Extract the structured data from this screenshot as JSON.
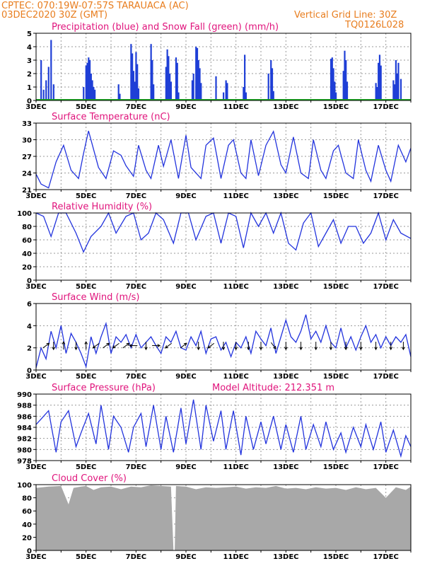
{
  "header": {
    "line1": "CPTEC:    070:19W-07:57S   TARAUACA (AC)",
    "line2": "03DEC2020 30Z (GMT)",
    "grid_note": "Vertical Grid Line: 30Z",
    "code": "TQ0126L028",
    "altitude_label": "Model Altitude: 212.351 m"
  },
  "colors": {
    "header": "#e87d1e",
    "title": "#e0147c",
    "rain": "#1f3fd6",
    "snow": "#19a81f",
    "line": "#2233dd",
    "cloud": "#a8a8a8",
    "arrow": "#000000"
  },
  "x_ticks": [
    "3DEC",
    "5DEC",
    "7DEC",
    "9DEC",
    "11DEC",
    "13DEC",
    "15DEC",
    "17DEC"
  ],
  "chart_data": [
    {
      "id": "precip",
      "type": "bar",
      "title": "Precipitation (blue) and Snow Fall (green) (mm/h)",
      "ylim": [
        0,
        5
      ],
      "yticks": [
        0,
        1,
        2,
        3,
        4,
        5
      ],
      "x_days": [
        3,
        18
      ],
      "series": [
        {
          "name": "Precipitation",
          "color": "#1f3fd6",
          "x": [
            3.2,
            3.3,
            3.4,
            3.5,
            3.6,
            3.7,
            4.9,
            5.0,
            5.05,
            5.1,
            5.15,
            5.2,
            5.25,
            5.3,
            5.35,
            6.3,
            6.35,
            6.8,
            6.85,
            6.9,
            6.95,
            7.0,
            7.05,
            7.1,
            7.6,
            7.65,
            7.7,
            8.2,
            8.25,
            8.3,
            8.35,
            8.4,
            8.6,
            8.65,
            8.7,
            9.25,
            9.3,
            9.4,
            9.45,
            9.5,
            9.55,
            9.6,
            10.2,
            10.5,
            10.6,
            10.65,
            11.3,
            11.35,
            11.4,
            12.3,
            12.4,
            12.45,
            12.5,
            14.8,
            14.85,
            14.9,
            14.95,
            15.0,
            15.3,
            15.35,
            15.4,
            15.45,
            16.6,
            16.65,
            16.7,
            16.75,
            16.8,
            17.3,
            17.35,
            17.4,
            17.45,
            17.5,
            17.6
          ],
          "values": [
            3.0,
            0.8,
            1.5,
            2.5,
            4.5,
            1.2,
            1.0,
            2.6,
            2.8,
            3.2,
            3.0,
            2.0,
            1.5,
            1.0,
            0.8,
            1.2,
            0.5,
            4.2,
            3.5,
            2.2,
            1.4,
            3.6,
            2.7,
            0.9,
            4.2,
            3.0,
            1.2,
            2.5,
            3.8,
            3.3,
            2.0,
            1.4,
            3.2,
            2.8,
            0.6,
            1.5,
            2.0,
            4.0,
            3.9,
            3.0,
            2.4,
            1.3,
            1.8,
            0.6,
            1.5,
            1.3,
            1.0,
            3.4,
            0.6,
            2.0,
            3.0,
            2.4,
            0.7,
            3.1,
            3.2,
            2.4,
            1.4,
            0.6,
            2.2,
            3.7,
            3.0,
            1.4,
            1.3,
            1.0,
            2.8,
            3.4,
            2.6,
            1.5,
            1.2,
            3.0,
            2.0,
            2.8,
            1.6
          ]
        },
        {
          "name": "Snow Fall",
          "color": "#19a81f",
          "x": [
            3,
            18
          ],
          "values": [
            0,
            0
          ]
        }
      ]
    },
    {
      "id": "temp",
      "type": "line",
      "title": "Surface Temperature (nC)",
      "ylim": [
        21,
        33
      ],
      "yticks": [
        21,
        24,
        27,
        30,
        33
      ],
      "x_days": [
        3,
        18
      ],
      "series": [
        {
          "name": "Temperature",
          "color": "#2233dd",
          "x": [
            3.0,
            3.2,
            3.5,
            3.8,
            4.1,
            4.4,
            4.7,
            4.9,
            5.1,
            5.5,
            5.8,
            6.1,
            6.4,
            6.6,
            6.9,
            7.1,
            7.4,
            7.6,
            7.9,
            8.1,
            8.4,
            8.7,
            9.0,
            9.2,
            9.6,
            9.8,
            10.1,
            10.4,
            10.7,
            10.9,
            11.2,
            11.4,
            11.6,
            11.9,
            12.2,
            12.5,
            12.8,
            13.0,
            13.3,
            13.6,
            13.9,
            14.1,
            14.4,
            14.6,
            14.9,
            15.1,
            15.4,
            15.7,
            15.9,
            16.2,
            16.4,
            16.7,
            17.0,
            17.2,
            17.5,
            17.8,
            18.0
          ],
          "values": [
            23.8,
            22.0,
            21.3,
            26.0,
            29.0,
            24.5,
            23.0,
            27.5,
            31.6,
            25.0,
            23.0,
            28.0,
            27.2,
            25.3,
            23.4,
            29.0,
            24.5,
            23.0,
            29.0,
            25.2,
            30.0,
            23.0,
            30.8,
            25.0,
            23.0,
            29.0,
            30.3,
            23.0,
            29.0,
            30.0,
            24.0,
            23.0,
            30.0,
            23.5,
            29.0,
            31.5,
            25.5,
            24.0,
            30.5,
            24.0,
            23.0,
            30.0,
            24.5,
            23.0,
            28.0,
            29.0,
            24.0,
            23.0,
            30.0,
            24.5,
            22.5,
            29.0,
            24.5,
            22.5,
            29.0,
            26.0,
            28.5
          ]
        }
      ]
    },
    {
      "id": "rh",
      "type": "line",
      "title": "Relative Humidity (%)",
      "ylim": [
        0,
        100
      ],
      "yticks": [
        0,
        20,
        40,
        60,
        80,
        100
      ],
      "x_days": [
        3,
        18
      ],
      "series": [
        {
          "name": "Relative Humidity",
          "color": "#2233dd",
          "x": [
            3.0,
            3.3,
            3.6,
            3.9,
            4.2,
            4.6,
            4.9,
            5.2,
            5.6,
            5.9,
            6.2,
            6.6,
            6.9,
            7.2,
            7.5,
            7.8,
            8.1,
            8.5,
            8.8,
            9.1,
            9.4,
            9.8,
            10.1,
            10.4,
            10.7,
            11.0,
            11.3,
            11.6,
            11.9,
            12.2,
            12.5,
            12.8,
            13.1,
            13.4,
            13.7,
            14.0,
            14.3,
            14.6,
            14.9,
            15.2,
            15.5,
            15.8,
            16.1,
            16.4,
            16.7,
            17.0,
            17.3,
            17.6,
            18.0
          ],
          "values": [
            100,
            95,
            65,
            100,
            100,
            70,
            42,
            65,
            80,
            100,
            70,
            95,
            100,
            60,
            70,
            100,
            90,
            55,
            100,
            100,
            60,
            95,
            100,
            55,
            100,
            95,
            48,
            100,
            80,
            100,
            70,
            100,
            55,
            45,
            85,
            100,
            50,
            70,
            90,
            55,
            80,
            80,
            55,
            70,
            100,
            60,
            90,
            70,
            62
          ]
        }
      ]
    },
    {
      "id": "wind",
      "type": "line",
      "title": "Surface Wind (m/s)",
      "ylim": [
        0,
        6
      ],
      "yticks": [
        0,
        2,
        4,
        6
      ],
      "x_days": [
        3,
        18
      ],
      "series": [
        {
          "name": "Wind speed",
          "color": "#2233dd",
          "x": [
            3.0,
            3.2,
            3.4,
            3.6,
            3.8,
            4.0,
            4.2,
            4.4,
            4.6,
            4.8,
            5.0,
            5.2,
            5.4,
            5.6,
            5.8,
            6.0,
            6.2,
            6.4,
            6.6,
            6.8,
            7.0,
            7.2,
            7.4,
            7.6,
            7.8,
            8.0,
            8.2,
            8.4,
            8.6,
            8.8,
            9.0,
            9.2,
            9.4,
            9.6,
            9.8,
            10.0,
            10.2,
            10.4,
            10.6,
            10.8,
            11.0,
            11.2,
            11.4,
            11.6,
            11.8,
            12.0,
            12.2,
            12.4,
            12.6,
            12.8,
            13.0,
            13.2,
            13.4,
            13.6,
            13.8,
            14.0,
            14.2,
            14.4,
            14.6,
            14.8,
            15.0,
            15.2,
            15.4,
            15.6,
            15.8,
            16.0,
            16.2,
            16.4,
            16.6,
            16.8,
            17.0,
            17.2,
            17.4,
            17.6,
            17.8,
            18.0
          ],
          "values": [
            0.2,
            2.0,
            1.0,
            3.5,
            2.0,
            4.0,
            1.5,
            3.3,
            2.5,
            1.5,
            0.3,
            3.0,
            1.5,
            3.0,
            4.2,
            1.5,
            3.0,
            2.5,
            3.2,
            2.0,
            3.2,
            2.0,
            2.5,
            3.0,
            2.2,
            1.5,
            3.0,
            2.5,
            3.5,
            2.0,
            1.8,
            3.0,
            2.2,
            3.5,
            1.5,
            2.8,
            3.0,
            1.8,
            2.5,
            1.2,
            2.5,
            2.0,
            3.0,
            1.5,
            3.5,
            2.8,
            2.2,
            3.8,
            1.5,
            3.0,
            4.5,
            3.0,
            2.5,
            3.5,
            5.0,
            2.8,
            3.5,
            2.5,
            4.0,
            2.5,
            2.0,
            3.8,
            2.0,
            3.0,
            1.8,
            3.0,
            4.0,
            2.5,
            3.2,
            2.0,
            3.0,
            2.2,
            3.0,
            2.5,
            3.2,
            1.2
          ]
        }
      ],
      "arrows": [
        {
          "x": 3.4,
          "dir": "ne"
        },
        {
          "x": 3.7,
          "dir": "s"
        },
        {
          "x": 4.1,
          "dir": "n"
        },
        {
          "x": 4.6,
          "dir": "s"
        },
        {
          "x": 5.0,
          "dir": "n"
        },
        {
          "x": 5.4,
          "dir": "sw"
        },
        {
          "x": 5.8,
          "dir": "ne"
        },
        {
          "x": 6.2,
          "dir": "sw"
        },
        {
          "x": 6.6,
          "dir": "ne"
        },
        {
          "x": 6.9,
          "dir": "w"
        },
        {
          "x": 7.4,
          "dir": "s"
        },
        {
          "x": 7.8,
          "dir": "e"
        },
        {
          "x": 8.3,
          "dir": "sw"
        },
        {
          "x": 8.9,
          "dir": "ne"
        },
        {
          "x": 9.5,
          "dir": "s"
        },
        {
          "x": 10.0,
          "dir": "sw"
        },
        {
          "x": 10.5,
          "dir": "s"
        },
        {
          "x": 11.0,
          "dir": "s"
        },
        {
          "x": 11.5,
          "dir": "s"
        },
        {
          "x": 12.0,
          "dir": "s"
        },
        {
          "x": 12.5,
          "dir": "se"
        },
        {
          "x": 13.0,
          "dir": "s"
        },
        {
          "x": 13.6,
          "dir": "s"
        },
        {
          "x": 14.2,
          "dir": "s"
        },
        {
          "x": 14.8,
          "dir": "s"
        },
        {
          "x": 15.4,
          "dir": "s"
        },
        {
          "x": 16.0,
          "dir": "s"
        },
        {
          "x": 16.6,
          "dir": "s"
        },
        {
          "x": 17.2,
          "dir": "s"
        },
        {
          "x": 17.7,
          "dir": "s"
        }
      ]
    },
    {
      "id": "pressure",
      "type": "line",
      "title": "Surface Pressure (hPa)",
      "ylim": [
        978,
        990
      ],
      "yticks": [
        978,
        980,
        982,
        984,
        986,
        988,
        990
      ],
      "x_days": [
        3,
        18
      ],
      "series": [
        {
          "name": "Pressure",
          "color": "#2233dd",
          "x": [
            3.0,
            3.2,
            3.5,
            3.8,
            4.0,
            4.3,
            4.6,
            4.8,
            5.1,
            5.4,
            5.6,
            5.9,
            6.1,
            6.4,
            6.7,
            6.9,
            7.2,
            7.4,
            7.7,
            8.0,
            8.2,
            8.5,
            8.8,
            9.0,
            9.3,
            9.6,
            9.8,
            10.1,
            10.4,
            10.6,
            10.9,
            11.2,
            11.4,
            11.7,
            12.0,
            12.2,
            12.5,
            12.8,
            13.0,
            13.3,
            13.6,
            13.8,
            14.1,
            14.4,
            14.6,
            14.9,
            15.2,
            15.4,
            15.7,
            16.0,
            16.2,
            16.5,
            16.8,
            17.0,
            17.3,
            17.6,
            17.8,
            18.0
          ],
          "values": [
            984.5,
            985.5,
            987.0,
            979.5,
            985.0,
            987.0,
            980.5,
            983.0,
            986.5,
            981.0,
            988.0,
            980.0,
            986.0,
            984.0,
            979.5,
            984.0,
            986.5,
            980.5,
            988.0,
            980.0,
            986.0,
            979.5,
            987.5,
            981.0,
            989.0,
            980.0,
            988.0,
            981.5,
            987.0,
            980.0,
            987.0,
            979.0,
            986.0,
            980.0,
            985.0,
            981.0,
            986.0,
            980.0,
            984.5,
            979.5,
            986.0,
            980.0,
            984.5,
            980.5,
            985.0,
            980.0,
            983.0,
            979.5,
            984.0,
            980.5,
            984.5,
            980.0,
            985.0,
            979.5,
            983.5,
            978.8,
            982.5,
            980.5
          ]
        }
      ]
    },
    {
      "id": "cloud",
      "type": "area",
      "title": "Cloud Cover (%)",
      "ylim": [
        0,
        100
      ],
      "yticks": [
        0,
        20,
        40,
        60,
        80,
        100
      ],
      "x_days": [
        3,
        18
      ],
      "series": [
        {
          "name": "Cloud Cover",
          "color": "#a8a8a8",
          "x": [
            3.0,
            3.5,
            4.0,
            4.3,
            4.5,
            4.8,
            5.0,
            5.3,
            5.6,
            6.0,
            6.4,
            6.8,
            7.2,
            7.6,
            8.0,
            8.4,
            8.5,
            8.55,
            8.6,
            9.0,
            9.4,
            9.8,
            10.2,
            10.6,
            11.0,
            11.4,
            11.8,
            12.2,
            12.6,
            13.0,
            13.4,
            13.8,
            14.2,
            14.6,
            15.0,
            15.4,
            15.8,
            16.2,
            16.6,
            17.0,
            17.4,
            17.8,
            18.0
          ],
          "values": [
            95,
            97,
            98,
            70,
            95,
            97,
            98,
            92,
            96,
            97,
            93,
            97,
            96,
            99,
            98,
            97,
            0,
            0,
            98,
            97,
            93,
            96,
            95,
            96,
            97,
            94,
            96,
            95,
            98,
            94,
            95,
            93,
            96,
            94,
            95,
            92,
            96,
            93,
            95,
            80,
            96,
            92,
            97
          ]
        }
      ]
    }
  ]
}
